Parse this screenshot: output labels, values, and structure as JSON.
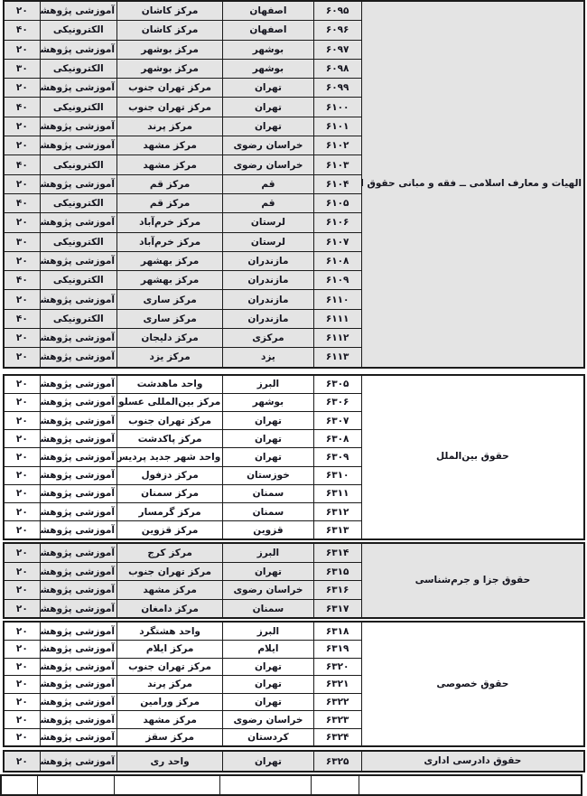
{
  "colors": {
    "category_text": "#8B2346",
    "cell_text": "#15151f",
    "shaded_row_bg": "#e4e4e4",
    "border": "#1b1b1b",
    "page_bg": "#ffffff"
  },
  "column_keys": [
    "category",
    "code",
    "province",
    "center",
    "program_type",
    "capacity"
  ],
  "blocks": [
    {
      "category": "الهیات و معارف اسلامی ــ فقه و مبانی حقوق اسلامی",
      "shaded": true,
      "rows": [
        {
          "capacity": "۲۰",
          "program_type": "آموزشی پژوهشی",
          "center": "مرکز کاشان",
          "province": "اصفهان",
          "code": "۶۰۹۵"
        },
        {
          "capacity": "۴۰",
          "program_type": "الکترونیکی",
          "center": "مرکز کاشان",
          "province": "اصفهان",
          "code": "۶۰۹۶"
        },
        {
          "capacity": "۲۰",
          "program_type": "آموزشی پژوهشی",
          "center": "مرکز بوشهر",
          "province": "بوشهر",
          "code": "۶۰۹۷"
        },
        {
          "capacity": "۳۰",
          "program_type": "الکترونیکی",
          "center": "مرکز بوشهر",
          "province": "بوشهر",
          "code": "۶۰۹۸"
        },
        {
          "capacity": "۲۰",
          "program_type": "آموزشی پژوهشی",
          "center": "مرکز تهران جنوب",
          "province": "تهران",
          "code": "۶۰۹۹"
        },
        {
          "capacity": "۴۰",
          "program_type": "الکترونیکی",
          "center": "مرکز تهران جنوب",
          "province": "تهران",
          "code": "۶۱۰۰"
        },
        {
          "capacity": "۲۰",
          "program_type": "آموزشی پژوهشی",
          "center": "مرکز پرند",
          "province": "تهران",
          "code": "۶۱۰۱"
        },
        {
          "capacity": "۲۰",
          "program_type": "آموزشی پژوهشی",
          "center": "مرکز مشهد",
          "province": "خراسان رضوی",
          "code": "۶۱۰۲"
        },
        {
          "capacity": "۴۰",
          "program_type": "الکترونیکی",
          "center": "مرکز مشهد",
          "province": "خراسان رضوی",
          "code": "۶۱۰۳"
        },
        {
          "capacity": "۲۰",
          "program_type": "آموزشی پژوهشی",
          "center": "مرکز قم",
          "province": "قم",
          "code": "۶۱۰۴"
        },
        {
          "capacity": "۴۰",
          "program_type": "الکترونیکی",
          "center": "مرکز قم",
          "province": "قم",
          "code": "۶۱۰۵"
        },
        {
          "capacity": "۲۰",
          "program_type": "آموزشی پژوهشی",
          "center": "مرکز خرم‌آباد",
          "province": "لرستان",
          "code": "۶۱۰۶"
        },
        {
          "capacity": "۳۰",
          "program_type": "الکترونیکی",
          "center": "مرکز خرم‌آباد",
          "province": "لرستان",
          "code": "۶۱۰۷"
        },
        {
          "capacity": "۲۰",
          "program_type": "آموزشی پژوهشی",
          "center": "مرکز بهشهر",
          "province": "مازندران",
          "code": "۶۱۰۸"
        },
        {
          "capacity": "۴۰",
          "program_type": "الکترونیکی",
          "center": "مرکز بهشهر",
          "province": "مازندران",
          "code": "۶۱۰۹"
        },
        {
          "capacity": "۲۰",
          "program_type": "آموزشی پژوهشی",
          "center": "مرکز ساری",
          "province": "مازندران",
          "code": "۶۱۱۰"
        },
        {
          "capacity": "۴۰",
          "program_type": "الکترونیکی",
          "center": "مرکز ساری",
          "province": "مازندران",
          "code": "۶۱۱۱"
        },
        {
          "capacity": "۲۰",
          "program_type": "آموزشی پژوهشی",
          "center": "مرکز دلیجان",
          "province": "مرکزی",
          "code": "۶۱۱۲"
        },
        {
          "capacity": "۲۰",
          "program_type": "آموزشی پژوهشی",
          "center": "مرکز یزد",
          "province": "یزد",
          "code": "۶۱۱۳"
        }
      ]
    },
    {
      "category": "حقوق بین‌الملل",
      "shaded": false,
      "rows": [
        {
          "capacity": "۲۰",
          "program_type": "آموزشی پژوهشی",
          "center": "واحد ماهدشت",
          "province": "البرز",
          "code": "۶۳۰۵"
        },
        {
          "capacity": "۲۰",
          "program_type": "آموزشی پژوهشی",
          "center": "مرکز بین‌المللی عسلویه",
          "province": "بوشهر",
          "code": "۶۳۰۶"
        },
        {
          "capacity": "۲۰",
          "program_type": "آموزشی پژوهشی",
          "center": "مرکز تهران جنوب",
          "province": "تهران",
          "code": "۶۳۰۷"
        },
        {
          "capacity": "۲۰",
          "program_type": "آموزشی پژوهشی",
          "center": "مرکز پاکدشت",
          "province": "تهران",
          "code": "۶۳۰۸"
        },
        {
          "capacity": "۲۰",
          "program_type": "آموزشی پژوهشی",
          "center": "واحد شهر جدید پردیس",
          "province": "تهران",
          "code": "۶۳۰۹"
        },
        {
          "capacity": "۲۰",
          "program_type": "آموزشی پژوهشی",
          "center": "مرکز دزفول",
          "province": "خوزستان",
          "code": "۶۳۱۰"
        },
        {
          "capacity": "۲۰",
          "program_type": "آموزشی پژوهشی",
          "center": "مرکز سمنان",
          "province": "سمنان",
          "code": "۶۳۱۱"
        },
        {
          "capacity": "۲۰",
          "program_type": "آموزشی پژوهشی",
          "center": "مرکز گرمسار",
          "province": "سمنان",
          "code": "۶۳۱۲"
        },
        {
          "capacity": "۲۰",
          "program_type": "آموزشی پژوهشی",
          "center": "مرکز قزوین",
          "province": "قزوین",
          "code": "۶۳۱۳"
        }
      ]
    },
    {
      "category": "حقوق جزا و جرم‌شناسی",
      "shaded": true,
      "rows": [
        {
          "capacity": "۲۰",
          "program_type": "آموزشی پژوهشی",
          "center": "مرکز کرج",
          "province": "البرز",
          "code": "۶۳۱۴"
        },
        {
          "capacity": "۲۰",
          "program_type": "آموزشی پژوهشی",
          "center": "مرکز تهران جنوب",
          "province": "تهران",
          "code": "۶۳۱۵"
        },
        {
          "capacity": "۲۰",
          "program_type": "آموزشی پژوهشی",
          "center": "مرکز مشهد",
          "province": "خراسان رضوی",
          "code": "۶۳۱۶"
        },
        {
          "capacity": "۲۰",
          "program_type": "آموزشی پژوهشی",
          "center": "مرکز دامغان",
          "province": "سمنان",
          "code": "۶۳۱۷"
        }
      ]
    },
    {
      "category": "حقوق خصوصی",
      "shaded": false,
      "rows": [
        {
          "capacity": "۲۰",
          "program_type": "آموزشی پژوهشی",
          "center": "واحد هشتگرد",
          "province": "البرز",
          "code": "۶۳۱۸"
        },
        {
          "capacity": "۲۰",
          "program_type": "آموزشی پژوهشی",
          "center": "مرکز ایلام",
          "province": "ایلام",
          "code": "۶۳۱۹"
        },
        {
          "capacity": "۲۰",
          "program_type": "آموزشی پژوهشی",
          "center": "مرکز تهران جنوب",
          "province": "تهران",
          "code": "۶۳۲۰"
        },
        {
          "capacity": "۲۰",
          "program_type": "آموزشی پژوهشی",
          "center": "مرکز پرند",
          "province": "تهران",
          "code": "۶۳۲۱"
        },
        {
          "capacity": "۲۰",
          "program_type": "آموزشی پژوهشی",
          "center": "مرکز ورامین",
          "province": "تهران",
          "code": "۶۳۲۲"
        },
        {
          "capacity": "۲۰",
          "program_type": "آموزشی پژوهشی",
          "center": "مرکز مشهد",
          "province": "خراسان رضوی",
          "code": "۶۳۲۳"
        },
        {
          "capacity": "۲۰",
          "program_type": "آموزشی پژوهشی",
          "center": "مرکز سقز",
          "province": "کردستان",
          "code": "۶۳۲۴"
        }
      ]
    },
    {
      "category": "حقوق دادرسی اداری",
      "shaded": true,
      "rows": [
        {
          "capacity": "۲۰",
          "program_type": "آموزشی پژوهشی",
          "center": "واحد ری",
          "province": "تهران",
          "code": "۶۳۲۵"
        }
      ]
    }
  ]
}
